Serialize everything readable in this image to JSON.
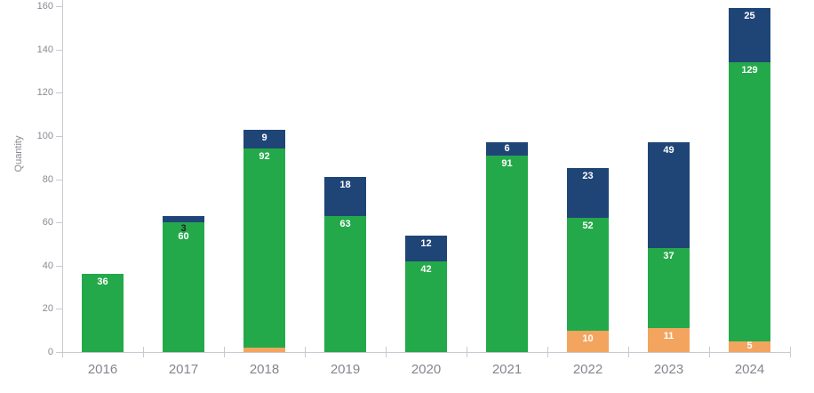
{
  "chart_data": {
    "type": "bar",
    "stacked": true,
    "title": "",
    "xlabel": "",
    "ylabel": "Quantity",
    "ylim": [
      0,
      160
    ],
    "yticks": [
      0,
      20,
      40,
      60,
      80,
      100,
      120,
      140,
      160
    ],
    "grid": "off",
    "legend": "none",
    "categories": [
      "2016",
      "2017",
      "2018",
      "2019",
      "2020",
      "2021",
      "2022",
      "2023",
      "2024"
    ],
    "series": [
      {
        "name": "orange-segment",
        "color": "#f3a55f",
        "values": [
          0,
          0,
          2,
          0,
          0,
          0,
          10,
          11,
          5
        ]
      },
      {
        "name": "green-segment",
        "color": "#24a94a",
        "values": [
          36,
          60,
          92,
          63,
          42,
          91,
          52,
          37,
          129
        ]
      },
      {
        "name": "blue-segment",
        "color": "#1f4577",
        "values": [
          0,
          3,
          9,
          18,
          12,
          6,
          23,
          49,
          25
        ]
      }
    ],
    "data_label_color_normal": "#ffffff",
    "data_label_color_tiny": "#222222",
    "axis_line_color": "#c9c9d2",
    "tick_label_color": "#8a8a93"
  }
}
